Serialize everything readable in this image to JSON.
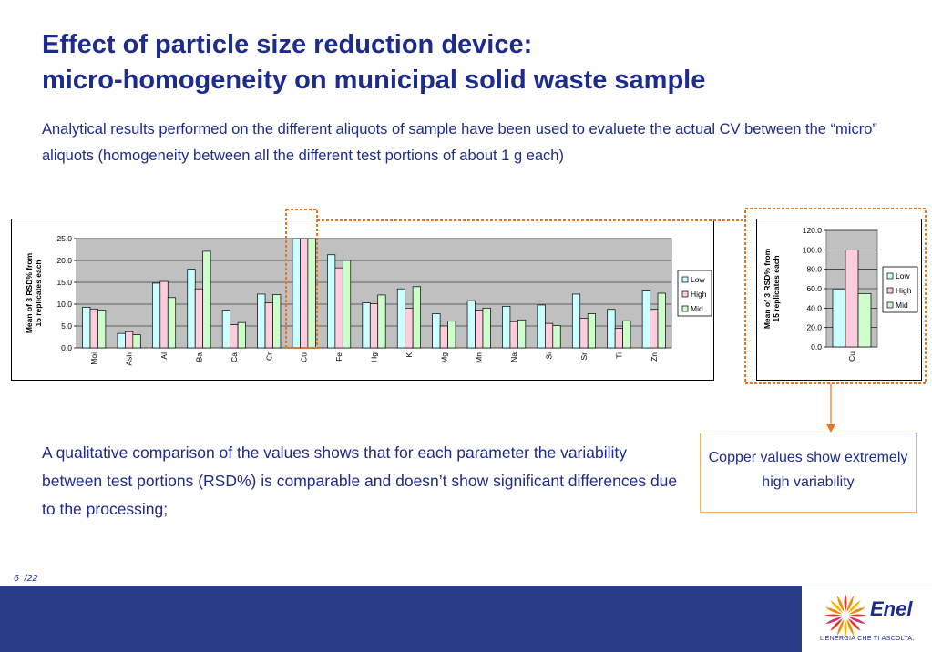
{
  "title": {
    "line1": "Effect of particle size reduction device:",
    "line2": "micro-homogeneity on municipal solid waste sample"
  },
  "intro": "Analytical results performed on the different aliquots of sample have been used to evaluete the actual CV between the “micro” aliquots (homogeneity between all the different test portions of about 1 g each)",
  "chart_data": [
    {
      "type": "bar",
      "categories": [
        "Moi",
        "Ash",
        "Al",
        "Ba",
        "Ca",
        "Cr",
        "Cu",
        "Fe",
        "Hg",
        "K",
        "Mg",
        "Mn",
        "Na",
        "Si",
        "Sr",
        "Ti",
        "Zn"
      ],
      "series": [
        {
          "name": "Low",
          "values": [
            9.3,
            3.3,
            14.8,
            18.0,
            8.6,
            12.3,
            25,
            21.3,
            10.3,
            13.5,
            7.8,
            10.8,
            9.5,
            9.8,
            12.3,
            8.8,
            13.0
          ]
        },
        {
          "name": "High",
          "values": [
            8.9,
            3.7,
            15.2,
            13.5,
            5.3,
            10.3,
            25,
            18.3,
            10.1,
            9.1,
            5.0,
            8.6,
            6.0,
            5.6,
            6.8,
            4.5,
            8.8
          ]
        },
        {
          "name": "Mid",
          "values": [
            8.6,
            3.0,
            11.5,
            22.1,
            5.8,
            12.2,
            25,
            20.0,
            12.1,
            14.0,
            6.1,
            9.1,
            6.4,
            5.1,
            7.8,
            6.2,
            12.5
          ]
        }
      ],
      "ylabel": "Mean of 3 RSD% from 15 replicates each",
      "ylim": [
        0,
        25
      ],
      "yticks": [
        "0.0",
        "5.0",
        "10.0",
        "15.0",
        "20.0",
        "25.0"
      ],
      "grid": true,
      "legend": "right"
    },
    {
      "type": "bar",
      "categories": [
        "Cu"
      ],
      "series": [
        {
          "name": "Low",
          "values": [
            59
          ]
        },
        {
          "name": "High",
          "values": [
            100
          ]
        },
        {
          "name": "Mid",
          "values": [
            55
          ]
        }
      ],
      "ylabel": "Mean of 3 RSD% from 15 replicates each",
      "ylim": [
        0,
        120
      ],
      "yticks": [
        "0.0",
        "20.0",
        "40.0",
        "60.0",
        "80.0",
        "100.0",
        "120.0"
      ],
      "grid": true,
      "legend": "right"
    }
  ],
  "colors": {
    "low": "#ccffff",
    "high": "#ffccdd",
    "mid": "#ccffcc",
    "plot_bg": "#c0c0c0",
    "highlight": "#e87722",
    "navy": "#1c2b8c",
    "footer": "#2a3c87"
  },
  "note": "A qualitative comparison of the values shows that for each parameter the variability between test portions (RSD%) is comparable and doesn’t show significant differences due to the processing;",
  "callout": "Copper values show extremely high variability",
  "page": {
    "current": "6",
    "total": "/22"
  },
  "logo": {
    "name": "Enel",
    "tagline": "L’ENERGIA CHE TI ASCOLTA.",
    "icon": "enel-sun-icon"
  }
}
